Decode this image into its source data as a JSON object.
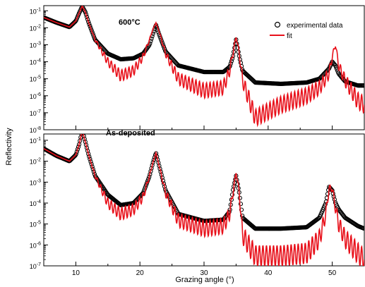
{
  "chart_data": {
    "type": "line",
    "xlabel": "Grazing angle (°)",
    "ylabel": "Reflectivity",
    "xlim": [
      5,
      55
    ],
    "x_ticks": [
      10,
      20,
      30,
      40,
      50
    ],
    "legend": {
      "placement": "top-right",
      "entries": [
        {
          "label": "experimental data",
          "marker": "open-circle",
          "color": "#000000"
        },
        {
          "label": "fit",
          "marker": "line",
          "color": "#e8101a"
        }
      ]
    },
    "y_scale": "log",
    "panels": [
      {
        "annotation": "600°C",
        "ylim": [
          1e-08,
          0.2
        ],
        "y_ticks": [
          {
            "exp": -1,
            "label": "10-1"
          },
          {
            "exp": -2,
            "label": "10-2"
          },
          {
            "exp": -3,
            "label": "10-3"
          },
          {
            "exp": -4,
            "label": "10-4"
          },
          {
            "exp": -5,
            "label": "10-5"
          },
          {
            "exp": -6,
            "label": "10-6"
          },
          {
            "exp": -7,
            "label": "10-7"
          },
          {
            "exp": -8,
            "label": "10-8"
          }
        ],
        "series": [
          {
            "name": "experimental data",
            "color": "#000000",
            "x": [
              5,
              7,
              9,
              10,
              10.5,
              11,
              11.5,
              12,
              13,
              15,
              17,
              19,
              20.5,
              21.5,
              22,
              22.5,
              23,
              24,
              26,
              30,
              33,
              34,
              34.5,
              35,
              35.5,
              36,
              38,
              42,
              46,
              48,
              49.5,
              50,
              50.5,
              51,
              52,
              54,
              55
            ],
            "y": [
              0.04,
              0.02,
              0.011,
              0.025,
              0.07,
              0.18,
              0.08,
              0.02,
              0.002,
              0.0003,
              0.00014,
              0.00016,
              0.0003,
              0.001,
              0.004,
              0.015,
              0.004,
              0.0004,
              6e-05,
              2.5e-05,
              2.5e-05,
              5e-05,
              0.0002,
              0.002,
              0.0002,
              3e-05,
              6e-06,
              5e-06,
              6e-06,
              1e-05,
              4e-05,
              0.0001,
              6e-05,
              2e-05,
              7e-06,
              4e-06,
              4e-06
            ]
          },
          {
            "name": "fit",
            "color": "#e8101a",
            "x": [
              5,
              7,
              9,
              10,
              10.5,
              11,
              11.5,
              12,
              13,
              15,
              17,
              19,
              20.5,
              21.5,
              22,
              22.5,
              23,
              24,
              26,
              30,
              33,
              34,
              34.5,
              35,
              35.5,
              36,
              38,
              42,
              46,
              48,
              49.5,
              50,
              50.5,
              51,
              52,
              54,
              55
            ],
            "y": [
              0.04,
              0.02,
              0.011,
              0.025,
              0.07,
              0.19,
              0.08,
              0.02,
              0.002,
              0.0001,
              1.5e-05,
              3e-05,
              0.0002,
              0.002,
              0.008,
              0.02,
              0.006,
              0.0003,
              1e-05,
              2e-06,
              3e-06,
              3e-05,
              0.0003,
              0.003,
              0.0003,
              8e-06,
              5e-08,
              3e-07,
              1e-06,
              3e-06,
              2e-05,
              0.0002,
              0.001,
              6e-05,
              8e-06,
              5e-07,
              3e-07
            ]
          }
        ]
      },
      {
        "annotation": "As-deposited",
        "ylim": [
          1e-07,
          0.2
        ],
        "y_ticks": [
          {
            "exp": -1,
            "label": "10-1"
          },
          {
            "exp": -2,
            "label": "10-2"
          },
          {
            "exp": -3,
            "label": "10-3"
          },
          {
            "exp": -4,
            "label": "10-4"
          },
          {
            "exp": -5,
            "label": "10-5"
          },
          {
            "exp": -6,
            "label": "10-6"
          },
          {
            "exp": -7,
            "label": "10-7"
          }
        ],
        "series": [
          {
            "name": "experimental data",
            "color": "#000000",
            "x": [
              5,
              7,
              9,
              10,
              10.5,
              11,
              11.5,
              12,
              13,
              15,
              17,
              19,
              20.5,
              21.5,
              22,
              22.5,
              23,
              24,
              26,
              30,
              33,
              34,
              34.5,
              35,
              35.5,
              36,
              38,
              42,
              46,
              48,
              49,
              49.5,
              50,
              50.5,
              51,
              52,
              54,
              55
            ],
            "y": [
              0.04,
              0.018,
              0.01,
              0.02,
              0.06,
              0.3,
              0.08,
              0.02,
              0.002,
              0.00025,
              8e-05,
              0.0001,
              0.0003,
              0.002,
              0.008,
              0.025,
              0.006,
              0.0004,
              3e-05,
              1.4e-05,
              1.6e-05,
              4e-05,
              0.0004,
              0.002,
              0.0003,
              2e-05,
              6e-06,
              6e-06,
              7e-06,
              2e-05,
              0.0001,
              0.0006,
              0.0004,
              0.0001,
              5e-05,
              2e-05,
              8e-06,
              6e-06
            ]
          },
          {
            "name": "fit",
            "color": "#e8101a",
            "x": [
              5,
              7,
              9,
              10,
              10.5,
              11,
              11.5,
              12,
              13,
              15,
              17,
              19,
              20.5,
              21.5,
              22,
              22.5,
              23,
              24,
              26,
              30,
              33,
              34,
              34.5,
              35,
              35.5,
              36,
              38,
              42,
              46,
              48,
              49,
              49.5,
              50,
              50.5,
              51,
              52,
              54,
              55
            ],
            "y": [
              0.04,
              0.018,
              0.01,
              0.02,
              0.06,
              0.3,
              0.08,
              0.02,
              0.002,
              0.0001,
              3e-05,
              5e-05,
              0.0002,
              0.002,
              0.008,
              0.025,
              0.006,
              0.0003,
              1.5e-05,
              6e-06,
              8e-06,
              3e-05,
              0.0003,
              0.003,
              0.0003,
              3e-06,
              3e-07,
              3e-07,
              4e-07,
              2e-06,
              3e-05,
              0.0005,
              0.0005,
              6e-05,
              1e-05,
              2e-06,
              4e-07,
              2e-07
            ]
          }
        ]
      }
    ]
  }
}
